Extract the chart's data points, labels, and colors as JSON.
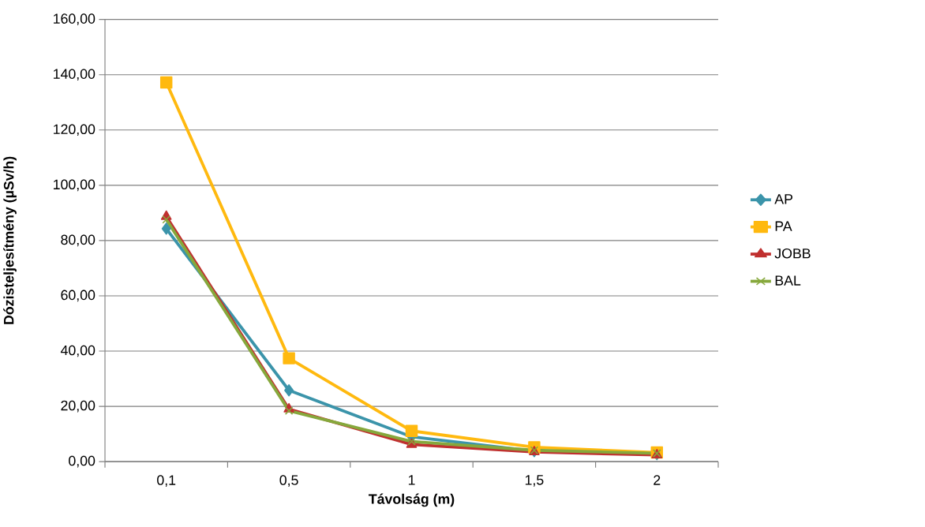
{
  "chart_data": {
    "type": "line",
    "xlabel": "Távolság (m)",
    "ylabel": "Dózisteljesítmény (µSv/h)",
    "categories": [
      "0,1",
      "0,5",
      "1",
      "1,5",
      "2"
    ],
    "series": [
      {
        "name": "AP",
        "color": "#3b94aa",
        "marker": "diamond",
        "values": [
          84.3,
          25.8,
          9.0,
          3.8,
          2.7
        ]
      },
      {
        "name": "PA",
        "color": "#ffb90f",
        "marker": "square",
        "values": [
          137.2,
          37.4,
          11.1,
          5.2,
          3.3
        ]
      },
      {
        "name": "JOBB",
        "color": "#c0302f",
        "marker": "triangle",
        "values": [
          88.7,
          19.0,
          6.2,
          3.5,
          2.4
        ]
      },
      {
        "name": "BAL",
        "color": "#86a83c",
        "marker": "cross",
        "values": [
          87.6,
          18.4,
          7.3,
          4.1,
          3.0
        ]
      }
    ],
    "ylim": [
      0,
      160
    ],
    "yticks": [
      {
        "value": 0,
        "label": "0,00"
      },
      {
        "value": 20,
        "label": "20,00"
      },
      {
        "value": 40,
        "label": "40,00"
      },
      {
        "value": 60,
        "label": "60,00"
      },
      {
        "value": 80,
        "label": "80,00"
      },
      {
        "value": 100,
        "label": "100,00"
      },
      {
        "value": 120,
        "label": "120,00"
      },
      {
        "value": 140,
        "label": "140,00"
      },
      {
        "value": 160,
        "label": "160,00"
      }
    ],
    "grid": "y",
    "legend": "right",
    "line_style": "solid"
  }
}
